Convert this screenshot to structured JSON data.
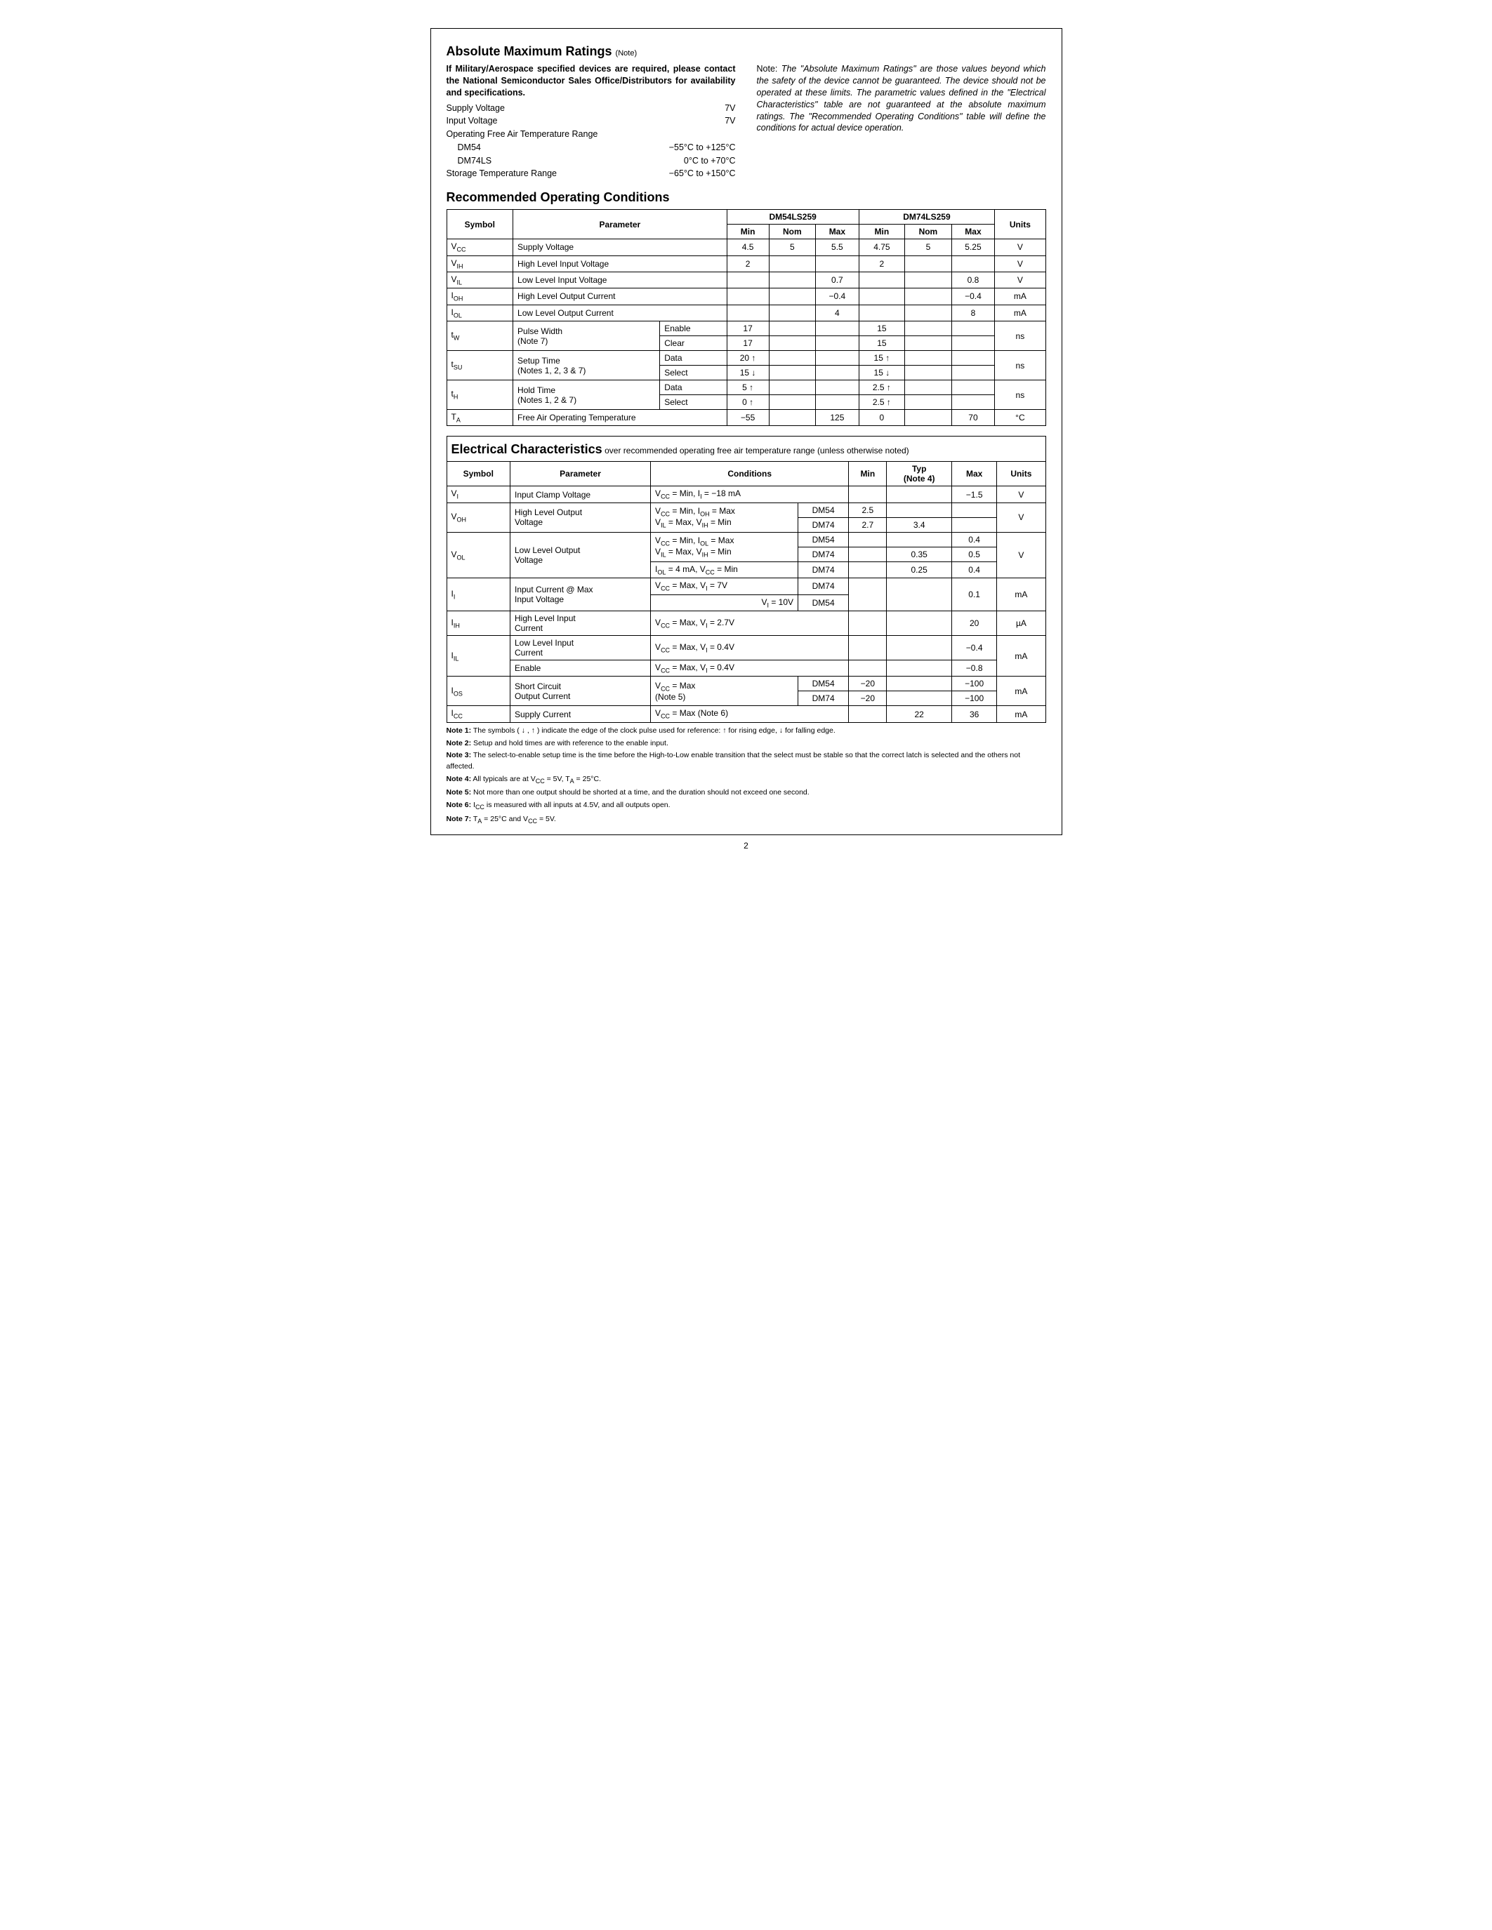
{
  "amr": {
    "title": "Absolute Maximum Ratings",
    "title_note": "(Note)",
    "military_text": "If Military/Aerospace specified devices are required, please contact the National Semiconductor Sales Office/Distributors for availability and specifications.",
    "rows": [
      {
        "label": "Supply Voltage",
        "value": "7V"
      },
      {
        "label": "Input Voltage",
        "value": "7V"
      },
      {
        "label": "Operating Free Air Temperature Range",
        "value": ""
      },
      {
        "label": "DM54",
        "value": "−55°C to +125°C",
        "indent": true
      },
      {
        "label": "DM74LS",
        "value": "0°C to +70°C",
        "indent": true
      },
      {
        "label": "Storage Temperature Range",
        "value": "−65°C to +150°C"
      }
    ],
    "note_prefix": "Note:",
    "note_text": "The \"Absolute Maximum Ratings\" are those values beyond which the safety of the device cannot be guaranteed. The device should not be operated at these limits. The parametric values defined in the \"Electrical Characteristics\" table are not guaranteed at the absolute maximum ratings. The \"Recommended Operating Conditions\" table will define the conditions for actual device operation."
  },
  "roc": {
    "title": "Recommended Operating Conditions",
    "headers": {
      "symbol": "Symbol",
      "parameter": "Parameter",
      "part1": "DM54LS259",
      "part2": "DM74LS259",
      "units": "Units",
      "min": "Min",
      "nom": "Nom",
      "max": "Max"
    },
    "rows": [
      {
        "sym": "V<sub>CC</sub>",
        "param": "Supply Voltage",
        "d1": [
          "4.5",
          "5",
          "5.5"
        ],
        "d2": [
          "4.75",
          "5",
          "5.25"
        ],
        "u": "V"
      },
      {
        "sym": "V<sub>IH</sub>",
        "param": "High Level Input Voltage",
        "d1": [
          "2",
          "",
          ""
        ],
        "d2": [
          "2",
          "",
          ""
        ],
        "u": "V"
      },
      {
        "sym": "V<sub>IL</sub>",
        "param": "Low Level Input Voltage",
        "d1": [
          "",
          "",
          "0.7"
        ],
        "d2": [
          "",
          "",
          "0.8"
        ],
        "u": "V"
      },
      {
        "sym": "I<sub>OH</sub>",
        "param": "High Level Output Current",
        "d1": [
          "",
          "",
          "−0.4"
        ],
        "d2": [
          "",
          "",
          "−0.4"
        ],
        "u": "mA"
      },
      {
        "sym": "I<sub>OL</sub>",
        "param": "Low Level Output Current",
        "d1": [
          "",
          "",
          "4"
        ],
        "d2": [
          "",
          "",
          "8"
        ],
        "u": "mA"
      }
    ],
    "tw": {
      "sym": "t<sub>W</sub>",
      "param": "Pulse Width<br>(Note 7)",
      "sub": [
        "Enable",
        "Clear"
      ],
      "d1": [
        [
          "17",
          "",
          ""
        ],
        [
          "17",
          "",
          ""
        ]
      ],
      "d2": [
        [
          "15",
          "",
          ""
        ],
        [
          "15",
          "",
          ""
        ]
      ],
      "u": "ns"
    },
    "tsu": {
      "sym": "t<sub>SU</sub>",
      "param": "Setup Time<br>(Notes 1, 2, 3 & 7)",
      "sub": [
        "Data",
        "Select"
      ],
      "d1": [
        [
          "20 ↑",
          "",
          ""
        ],
        [
          "15 ↓",
          "",
          ""
        ]
      ],
      "d2": [
        [
          "15 ↑",
          "",
          ""
        ],
        [
          "15 ↓",
          "",
          ""
        ]
      ],
      "u": "ns"
    },
    "th": {
      "sym": "t<sub>H</sub>",
      "param": "Hold Time<br>(Notes 1, 2 & 7)",
      "sub": [
        "Data",
        "Select"
      ],
      "d1": [
        [
          "5 ↑",
          "",
          ""
        ],
        [
          "0 ↑",
          "",
          ""
        ]
      ],
      "d2": [
        [
          "2.5 ↑",
          "",
          ""
        ],
        [
          "2.5 ↑",
          "",
          ""
        ]
      ],
      "u": "ns"
    },
    "ta": {
      "sym": "T<sub>A</sub>",
      "param": "Free Air Operating Temperature",
      "d1": [
        "−55",
        "",
        "125"
      ],
      "d2": [
        "0",
        "",
        "70"
      ],
      "u": "°C"
    }
  },
  "ec": {
    "title": "Electrical Characteristics",
    "title_sub": "over recommended operating free air temperature range (unless otherwise noted)",
    "headers": {
      "symbol": "Symbol",
      "parameter": "Parameter",
      "conditions": "Conditions",
      "min": "Min",
      "typ": "Typ<br>(Note 4)",
      "max": "Max",
      "units": "Units"
    },
    "vi": {
      "sym": "V<sub>I</sub>",
      "param": "Input Clamp Voltage",
      "cond": "V<sub>CC</sub> = Min, I<sub>I</sub> = −18 mA",
      "min": "",
      "typ": "",
      "max": "−1.5",
      "u": "V"
    },
    "voh": {
      "sym": "V<sub>OH</sub>",
      "param": "High Level Output<br>Voltage",
      "cond": "V<sub>CC</sub> = Min, I<sub>OH</sub> = Max<br>V<sub>IL</sub> = Max, V<sub>IH</sub> = Min",
      "rows": [
        {
          "dev": "DM54",
          "min": "2.5",
          "typ": "",
          "max": ""
        },
        {
          "dev": "DM74",
          "min": "2.7",
          "typ": "3.4",
          "max": ""
        }
      ],
      "u": "V"
    },
    "vol": {
      "sym": "V<sub>OL</sub>",
      "param": "Low Level Output<br>Voltage",
      "cond1": "V<sub>CC</sub> = Min, I<sub>OL</sub> = Max<br>V<sub>IL</sub> = Max, V<sub>IH</sub> = Min",
      "cond2": "I<sub>OL</sub> = 4 mA, V<sub>CC</sub> = Min",
      "rows": [
        {
          "dev": "DM54",
          "min": "",
          "typ": "",
          "max": "0.4"
        },
        {
          "dev": "DM74",
          "min": "",
          "typ": "0.35",
          "max": "0.5"
        },
        {
          "dev": "DM74",
          "min": "",
          "typ": "0.25",
          "max": "0.4"
        }
      ],
      "u": "V"
    },
    "ii": {
      "sym": "I<sub>I</sub>",
      "param": "Input Current @ Max<br>Input Voltage",
      "cond_prefix": "V<sub>CC</sub> = Max,",
      "cond_a": "V<sub>I</sub> = 7V",
      "cond_b": "V<sub>I</sub> = 10V",
      "rows": [
        {
          "dev": "DM74"
        },
        {
          "dev": "DM54"
        }
      ],
      "max": "0.1",
      "u": "mA"
    },
    "iih": {
      "sym": "I<sub>IH</sub>",
      "param": "High Level Input<br>Current",
      "cond": "V<sub>CC</sub> = Max, V<sub>I</sub> = 2.7V",
      "max": "20",
      "u": "µA"
    },
    "iil": {
      "sym": "I<sub>IL</sub>",
      "rows": [
        {
          "param": "Low Level Input<br>Current",
          "cond": "V<sub>CC</sub> = Max, V<sub>I</sub> = 0.4V",
          "max": "−0.4"
        },
        {
          "param": "Enable",
          "cond": "V<sub>CC</sub> = Max, V<sub>I</sub> = 0.4V",
          "max": "−0.8"
        }
      ],
      "u": "mA"
    },
    "ios": {
      "sym": "I<sub>OS</sub>",
      "param": "Short Circuit<br>Output Current",
      "cond": "V<sub>CC</sub> = Max<br>(Note 5)",
      "rows": [
        {
          "dev": "DM54",
          "min": "−20",
          "max": "−100"
        },
        {
          "dev": "DM74",
          "min": "−20",
          "max": "−100"
        }
      ],
      "u": "mA"
    },
    "icc": {
      "sym": "I<sub>CC</sub>",
      "param": "Supply Current",
      "cond": "V<sub>CC</sub> = Max (Note 6)",
      "typ": "22",
      "max": "36",
      "u": "mA"
    }
  },
  "notes": [
    {
      "label": "Note 1:",
      "text": "The symbols ( ↓ , ↑ ) indicate the edge of the clock pulse used for reference: ↑ for rising edge, ↓ for falling edge."
    },
    {
      "label": "Note 2:",
      "text": "Setup and hold times are with reference to the enable input."
    },
    {
      "label": "Note 3:",
      "text": "The select-to-enable setup time is the time before the High-to-Low enable transition that the select must be stable so that the correct latch is selected and the others not affected."
    },
    {
      "label": "Note 4:",
      "text": "All typicals are at V<sub>CC</sub> = 5V, T<sub>A</sub> = 25°C."
    },
    {
      "label": "Note 5:",
      "text": "Not more than one output should be shorted at a time, and the duration should not exceed one second."
    },
    {
      "label": "Note 6:",
      "text": "I<sub>CC</sub> is measured with all inputs at 4.5V, and all outputs open."
    },
    {
      "label": "Note 7:",
      "text": "T<sub>A</sub> = 25°C and V<sub>CC</sub> = 5V."
    }
  ],
  "page_number": "2"
}
